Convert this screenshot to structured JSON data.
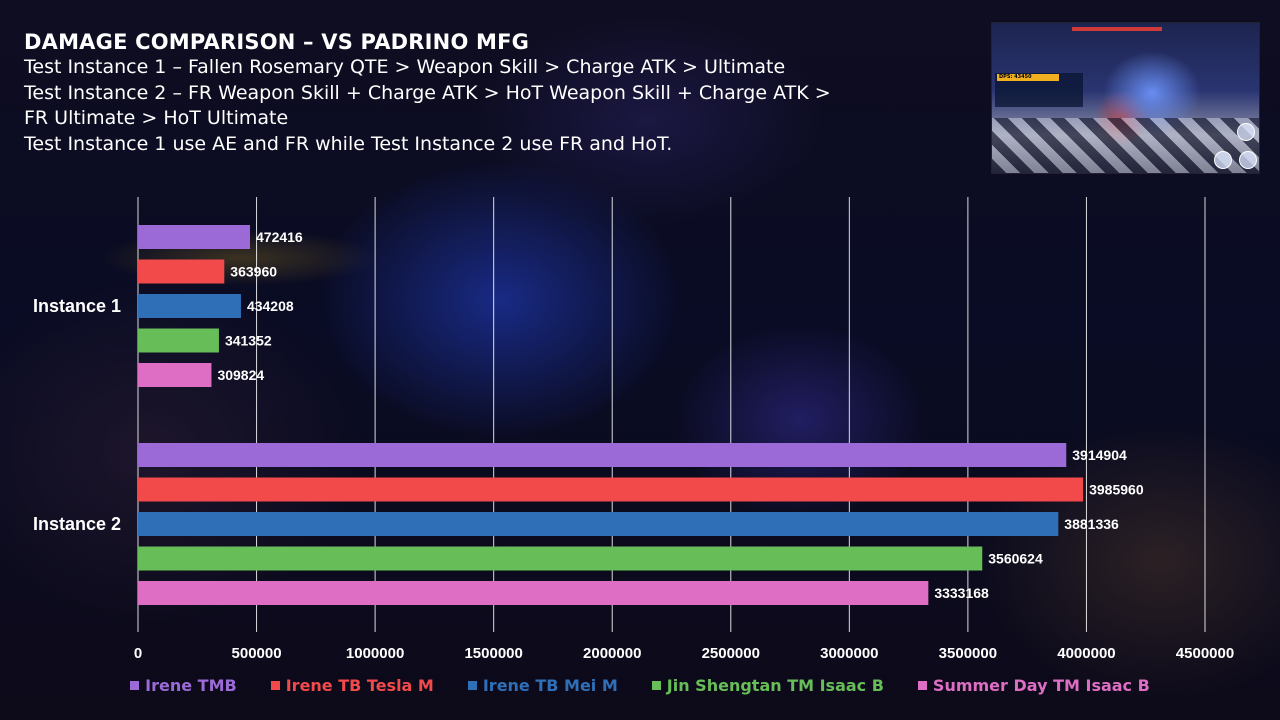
{
  "header": {
    "title": "DAMAGE COMPARISON – VS PADRINO MFG",
    "lines": [
      "Test Instance 1 – Fallen Rosemary QTE > Weapon Skill > Charge ATK > Ultimate",
      "Test Instance 2 – FR Weapon Skill + Charge ATK > HoT Weapon Skill + Charge ATK >",
      "FR Ultimate > HoT Ultimate",
      "Test Instance 1 use AE and FR while Test Instance 2 use FR and HoT."
    ]
  },
  "thumbnail": {
    "hud_dps": "DPS: 43450"
  },
  "chart_data": {
    "type": "bar",
    "orientation": "horizontal",
    "categories": [
      "Instance 1",
      "Instance 2"
    ],
    "series": [
      {
        "name": "Irene TMB",
        "color": "#9b6ad6",
        "values": [
          472416,
          3914904
        ]
      },
      {
        "name": "Irene TB Tesla M",
        "color": "#f24a4a",
        "values": [
          363960,
          3985960
        ]
      },
      {
        "name": "Irene TB Mei M",
        "color": "#2f6fb8",
        "values": [
          434208,
          3881336
        ]
      },
      {
        "name": "Jin Shengtan TM Isaac B",
        "color": "#67bd58",
        "values": [
          341352,
          3560624
        ]
      },
      {
        "name": "Summer Day TM Isaac B",
        "color": "#dd6ec3",
        "values": [
          309824,
          3333168
        ]
      }
    ],
    "xlim": [
      0,
      4500000
    ],
    "xticks": [
      "0",
      "500000",
      "1000000",
      "1500000",
      "2000000",
      "2500000",
      "3000000",
      "3500000",
      "4000000",
      "4500000"
    ],
    "grid": true,
    "legend_position": "bottom"
  }
}
